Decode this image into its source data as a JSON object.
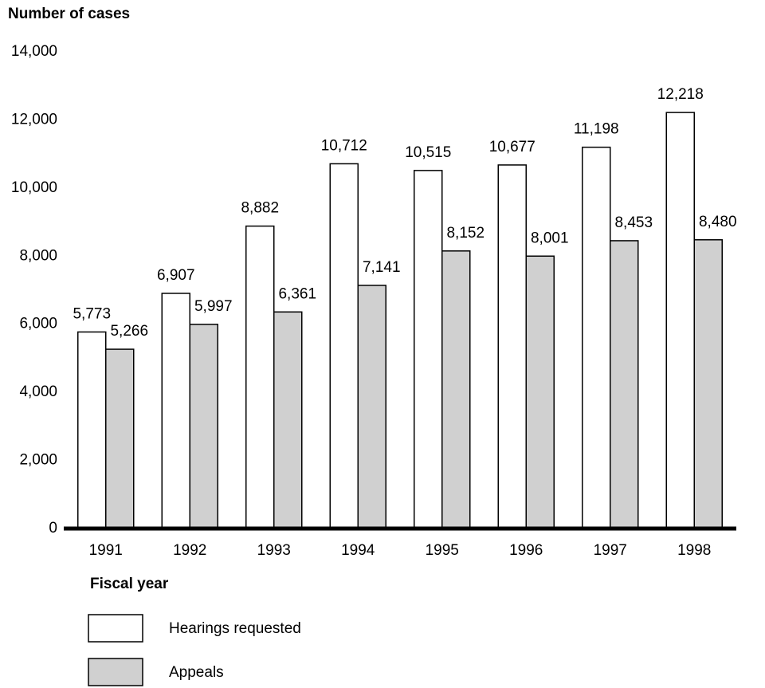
{
  "chart_data": {
    "type": "bar",
    "y_label": "Number of cases",
    "x_label": "Fiscal year",
    "categories": [
      "1991",
      "1992",
      "1993",
      "1994",
      "1995",
      "1996",
      "1997",
      "1998"
    ],
    "series": [
      {
        "name": "Hearings requested",
        "color": "#ffffff",
        "values": [
          5773,
          6907,
          8882,
          10712,
          10515,
          10677,
          11198,
          12218
        ],
        "value_labels": [
          "5,773",
          "6,907",
          "8,882",
          "10,712",
          "10,515",
          "10,677",
          "11,198",
          "12,218"
        ]
      },
      {
        "name": "Appeals",
        "color": "#d0d0d0",
        "values": [
          5266,
          5997,
          6361,
          7141,
          8152,
          8001,
          8453,
          8480
        ],
        "value_labels": [
          "5,266",
          "5,997",
          "6,361",
          "7,141",
          "8,152",
          "8,001",
          "8,453",
          "8,480"
        ]
      }
    ],
    "ylim": [
      0,
      14000
    ],
    "yticks": [
      0,
      {
        "value": 2000,
        "label": "2,000"
      },
      {
        "value": 4000,
        "label": "4,000"
      },
      {
        "value": 6000,
        "label": "6,000"
      },
      {
        "value": 8000,
        "label": "8,000"
      },
      {
        "value": 10000,
        "label": "10,000"
      },
      {
        "value": 12000,
        "label": "12,000"
      },
      {
        "value": 14000,
        "label": "14,000"
      }
    ],
    "grid": false
  }
}
